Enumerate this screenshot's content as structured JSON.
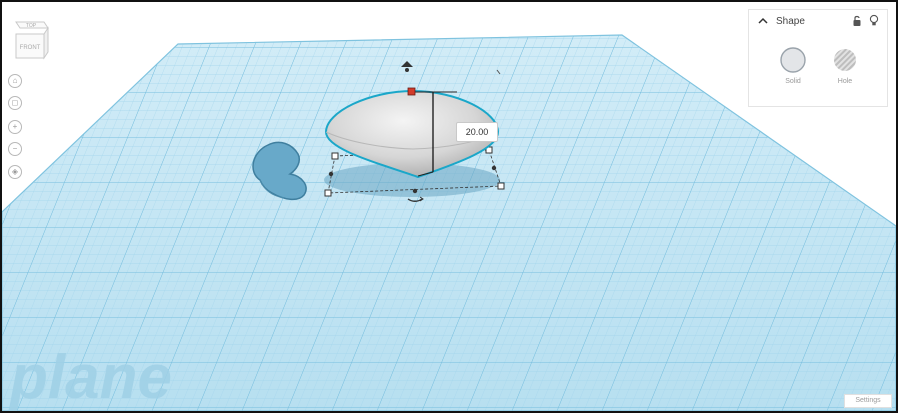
{
  "viewcube": {
    "top": "TOP",
    "front": "FRONT"
  },
  "nav_controls": [
    {
      "name": "home-view-icon",
      "glyph": "⌂"
    },
    {
      "name": "fit-view-icon",
      "glyph": "◻"
    },
    {
      "name": "zoom-in-icon",
      "glyph": "+"
    },
    {
      "name": "zoom-out-icon",
      "glyph": "−"
    },
    {
      "name": "perspective-icon",
      "glyph": "◈"
    }
  ],
  "inspector": {
    "title": "Shape",
    "solid_label": "Solid",
    "hole_label": "Hole"
  },
  "dimension": {
    "value": "20.00"
  },
  "workplane": {
    "label": "plane"
  },
  "settings": {
    "label": "Settings"
  },
  "colors": {
    "grid_fill": "#c5e5f4",
    "grid_line": "#8fcbe6",
    "shape_fill": "#d9d9d9",
    "heart_fill": "#66a8c8",
    "accent": "#1aa7c9"
  }
}
